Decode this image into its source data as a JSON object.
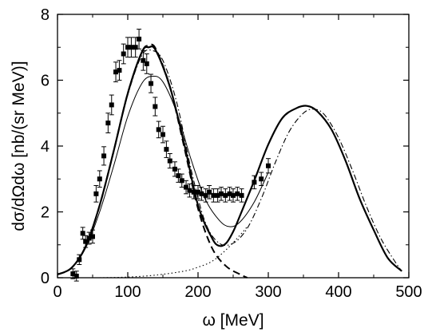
{
  "chart_data": {
    "type": "line",
    "title": "",
    "xlabel": "ω [MeV]",
    "ylabel": "dσ/dΩdω [nb/(sr MeV)]",
    "xlim": [
      0,
      500
    ],
    "ylim": [
      0,
      8
    ],
    "xticks": [
      0,
      100,
      200,
      300,
      400,
      500
    ],
    "yticks": [
      0,
      2,
      4,
      6,
      8
    ],
    "grid": false,
    "legend": "none",
    "series": [
      {
        "style": "thick-solid",
        "x": [
          0,
          20,
          40,
          60,
          80,
          100,
          120,
          130,
          140,
          160,
          180,
          200,
          220,
          230,
          240,
          250,
          260,
          280,
          300,
          320,
          340,
          355,
          370,
          390,
          410,
          430,
          450,
          470,
          490
        ],
        "y": [
          0.1,
          0.3,
          0.95,
          2.2,
          3.85,
          5.6,
          6.85,
          7.0,
          6.9,
          5.8,
          4.1,
          2.2,
          1.2,
          0.97,
          1.05,
          1.4,
          1.9,
          2.95,
          4.05,
          4.85,
          5.15,
          5.22,
          5.05,
          4.5,
          3.55,
          2.4,
          1.45,
          0.6,
          0.2
        ]
      },
      {
        "style": "thin-solid",
        "x": [
          0,
          20,
          40,
          60,
          80,
          100,
          120,
          135,
          150,
          170,
          190,
          210,
          230,
          245,
          260,
          280,
          300
        ],
        "y": [
          0.1,
          0.3,
          0.9,
          2.0,
          3.4,
          4.9,
          5.9,
          6.12,
          5.95,
          5.0,
          3.6,
          2.4,
          1.75,
          1.55,
          1.7,
          2.3,
          3.2
        ]
      },
      {
        "style": "dashed",
        "x": [
          0,
          20,
          40,
          60,
          80,
          100,
          120,
          130,
          140,
          160,
          180,
          200,
          220,
          240,
          260,
          270
        ],
        "y": [
          0.1,
          0.3,
          0.95,
          2.2,
          3.85,
          5.6,
          6.85,
          7.05,
          6.95,
          5.8,
          4.0,
          2.1,
          0.9,
          0.35,
          0.1,
          0.0
        ]
      },
      {
        "style": "dash-dot",
        "x": [
          0,
          20,
          40,
          60,
          80,
          100,
          120,
          135,
          150,
          170,
          190,
          210,
          230,
          250,
          270,
          290,
          310,
          330,
          350,
          365,
          380,
          400,
          420,
          440,
          460,
          480,
          490
        ],
        "y": [
          0.1,
          0.3,
          0.95,
          2.2,
          3.85,
          5.55,
          6.75,
          6.9,
          6.6,
          5.3,
          3.3,
          1.7,
          1.05,
          1.05,
          1.5,
          2.4,
          3.5,
          4.45,
          5.0,
          5.12,
          4.95,
          4.25,
          3.25,
          2.15,
          1.2,
          0.5,
          0.2
        ]
      },
      {
        "style": "dotted",
        "x": [
          60,
          100,
          140,
          180,
          200,
          220,
          240,
          260,
          270
        ],
        "y": [
          0.0,
          0.02,
          0.08,
          0.2,
          0.32,
          0.5,
          0.85,
          1.3,
          1.55
        ]
      }
    ],
    "points": {
      "x": [
        22,
        27,
        31,
        36,
        40,
        45,
        50,
        55,
        60,
        66,
        72,
        77,
        83,
        88,
        94,
        100,
        105,
        111,
        116,
        122,
        127,
        133,
        139,
        144,
        150,
        155,
        160,
        167,
        172,
        177,
        183,
        188,
        194,
        200,
        205,
        211,
        216,
        222,
        228,
        233,
        239,
        245,
        250,
        256,
        262,
        280,
        290,
        300
      ],
      "y": [
        0.12,
        0.05,
        0.55,
        1.35,
        1.1,
        1.2,
        1.25,
        2.55,
        3.0,
        3.7,
        4.7,
        5.25,
        6.25,
        6.3,
        6.8,
        7.0,
        7.0,
        7.0,
        7.25,
        6.6,
        6.5,
        5.9,
        5.2,
        4.5,
        4.35,
        3.9,
        3.55,
        3.3,
        3.1,
        2.95,
        2.75,
        2.65,
        2.6,
        2.6,
        2.55,
        2.5,
        2.6,
        2.5,
        2.5,
        2.55,
        2.5,
        2.55,
        2.5,
        2.55,
        2.5,
        2.9,
        3.0,
        3.4
      ],
      "yerr": [
        0.15,
        0.15,
        0.15,
        0.18,
        0.18,
        0.18,
        0.2,
        0.25,
        0.25,
        0.28,
        0.3,
        0.3,
        0.3,
        0.3,
        0.3,
        0.3,
        0.3,
        0.3,
        0.3,
        0.3,
        0.3,
        0.28,
        0.28,
        0.25,
        0.25,
        0.25,
        0.22,
        0.22,
        0.2,
        0.2,
        0.2,
        0.2,
        0.2,
        0.2,
        0.2,
        0.2,
        0.2,
        0.2,
        0.2,
        0.2,
        0.2,
        0.2,
        0.2,
        0.2,
        0.2,
        0.2,
        0.2,
        0.22
      ]
    }
  }
}
